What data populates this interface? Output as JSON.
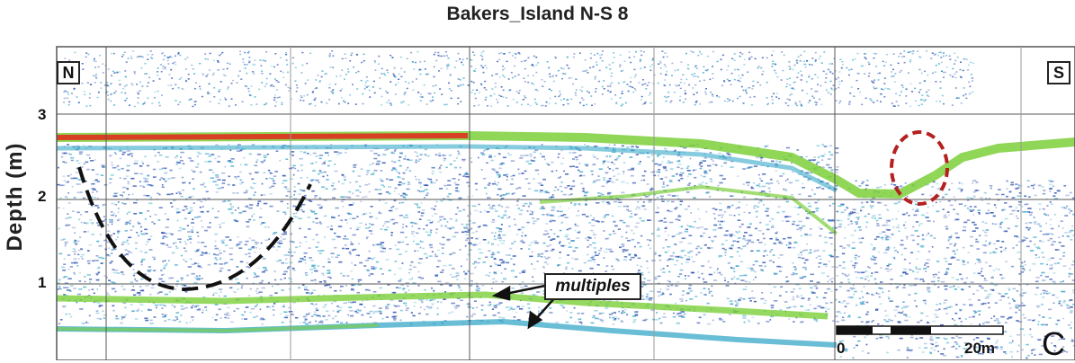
{
  "title": "Bakers_Island  N-S 8",
  "ylabel": "Depth (m)",
  "yticks": [
    "3",
    "2",
    "1"
  ],
  "labels": {
    "north": "N",
    "south": "S",
    "multiples": "multiples"
  },
  "scalebar": {
    "start": "0",
    "end": "20m"
  },
  "panel_letter": "C",
  "colors": {
    "background": "#ffffff",
    "seabed_strong": "#e0301e",
    "reflector_green": "#7ccf3a",
    "noise_blue": "#2a4fb0",
    "noise_cyan": "#37a8c8",
    "interpretation_line": "#111111",
    "anomaly_circle": "#b52020"
  }
}
